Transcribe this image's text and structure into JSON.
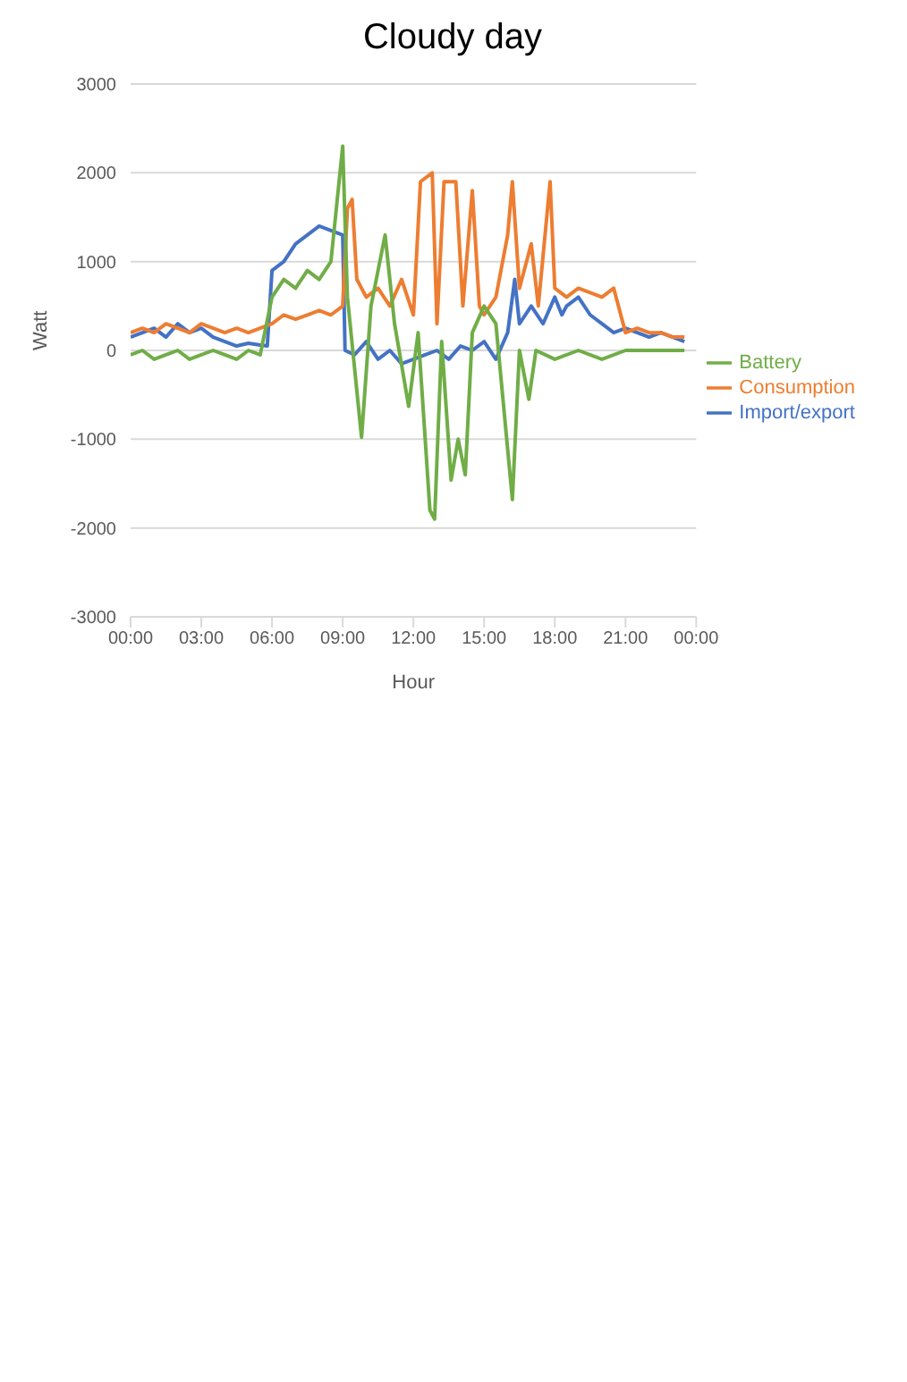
{
  "chart_data": {
    "type": "line",
    "title": "Cloudy day",
    "xlabel": "Hour",
    "ylabel": "Watt",
    "xlim": [
      0,
      24
    ],
    "xticks": [
      {
        "value": 0,
        "label": "00:00"
      },
      {
        "value": 3,
        "label": "03:00"
      },
      {
        "value": 6,
        "label": "06:00"
      },
      {
        "value": 9,
        "label": "09:00"
      },
      {
        "value": 12,
        "label": "12:00"
      },
      {
        "value": 15,
        "label": "15:00"
      },
      {
        "value": 18,
        "label": "18:00"
      },
      {
        "value": 21,
        "label": "21:00"
      },
      {
        "value": 24,
        "label": "00:00"
      }
    ],
    "ylim": [
      -3000,
      3000
    ],
    "yticks": [
      -3000,
      -2000,
      -1000,
      0,
      1000,
      2000,
      3000
    ],
    "grid": "y",
    "legend": "right",
    "marker": "none",
    "line_style": "solid",
    "series": [
      {
        "name": "Import/export",
        "color": "#4472c4",
        "x": [
          0,
          0.5,
          1,
          1.5,
          2,
          2.5,
          3,
          3.5,
          4,
          4.5,
          5,
          5.5,
          5.8,
          6,
          6.5,
          7,
          7.5,
          8,
          8.5,
          9,
          9.1,
          9.5,
          10,
          10.5,
          11,
          11.5,
          12,
          12.5,
          13,
          13.5,
          14,
          14.5,
          15,
          15.5,
          16,
          16.3,
          16.5,
          17,
          17.5,
          18,
          18.3,
          18.5,
          19,
          19.5,
          20,
          20.5,
          21,
          21.5,
          22,
          22.5,
          23,
          23.5
        ],
        "values": [
          150,
          200,
          250,
          150,
          300,
          200,
          250,
          150,
          100,
          50,
          80,
          60,
          50,
          900,
          1000,
          1200,
          1300,
          1400,
          1350,
          1300,
          0,
          -50,
          100,
          -100,
          0,
          -150,
          -100,
          -50,
          0,
          -100,
          50,
          0,
          100,
          -100,
          200,
          800,
          300,
          500,
          300,
          600,
          400,
          500,
          600,
          400,
          300,
          200,
          250,
          200,
          150,
          200,
          150,
          100
        ]
      },
      {
        "name": "Consumption",
        "color": "#ed7d31",
        "x": [
          0,
          0.5,
          1,
          1.5,
          2,
          2.5,
          3,
          3.5,
          4,
          4.5,
          5,
          5.5,
          6,
          6.5,
          7,
          7.5,
          8,
          8.5,
          9,
          9.2,
          9.4,
          9.6,
          10,
          10.5,
          11,
          11.5,
          12,
          12.3,
          12.8,
          13,
          13.3,
          13.8,
          14.1,
          14.5,
          14.8,
          15,
          15.5,
          16,
          16.2,
          16.5,
          17,
          17.3,
          17.8,
          18,
          18.5,
          19,
          19.5,
          20,
          20.5,
          21,
          21.5,
          22,
          22.5,
          23,
          23.5
        ],
        "values": [
          200,
          250,
          200,
          300,
          250,
          200,
          300,
          250,
          200,
          250,
          200,
          250,
          300,
          400,
          350,
          400,
          450,
          400,
          500,
          1600,
          1700,
          800,
          600,
          700,
          500,
          800,
          400,
          1900,
          2000,
          300,
          1900,
          1900,
          500,
          1800,
          500,
          400,
          600,
          1300,
          1900,
          700,
          1200,
          500,
          1900,
          700,
          600,
          700,
          650,
          600,
          700,
          200,
          250,
          200,
          200,
          150,
          150
        ]
      },
      {
        "name": "Battery",
        "color": "#70ad47",
        "x": [
          0,
          0.5,
          1,
          1.5,
          2,
          2.5,
          3,
          3.5,
          4,
          4.5,
          5,
          5.5,
          6,
          6.5,
          7,
          7.5,
          8,
          8.5,
          9,
          9.2,
          9.8,
          10.2,
          10.8,
          11.2,
          11.8,
          12.2,
          12.7,
          12.9,
          13.2,
          13.6,
          13.9,
          14.2,
          14.5,
          15,
          15.5,
          16.2,
          16.5,
          16.9,
          17.2,
          18,
          19,
          20,
          21,
          22,
          23,
          23.5
        ],
        "values": [
          -50,
          0,
          -100,
          -50,
          0,
          -100,
          -50,
          0,
          -50,
          -100,
          0,
          -50,
          600,
          800,
          700,
          900,
          800,
          1000,
          2300,
          600,
          -980,
          500,
          1300,
          300,
          -630,
          200,
          -1800,
          -1900,
          100,
          -1460,
          -1000,
          -1400,
          200,
          500,
          300,
          -1680,
          0,
          -550,
          0,
          -100,
          0,
          -100,
          0,
          0,
          0,
          0
        ]
      }
    ]
  }
}
